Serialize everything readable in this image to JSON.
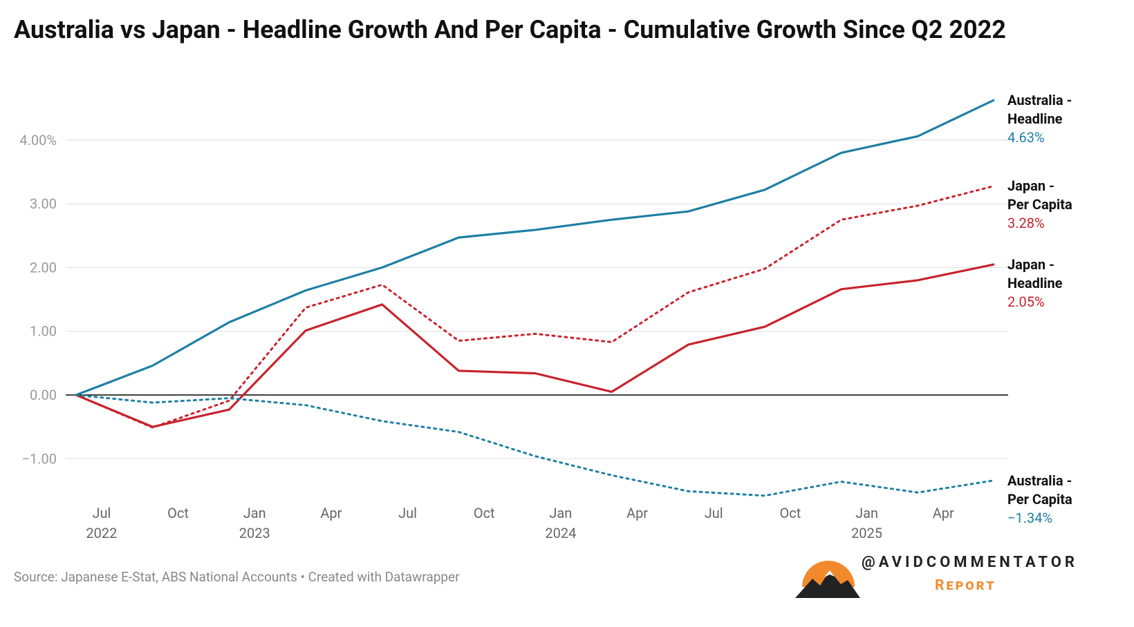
{
  "chart_data": {
    "type": "line",
    "title": "Australia vs Japan - Headline Growth And Per Capita - Cumulative Growth Since Q2 2022",
    "x": [
      "2022-06",
      "2022-09",
      "2022-12",
      "2023-03",
      "2023-06",
      "2023-09",
      "2023-12",
      "2024-03",
      "2024-06",
      "2024-09",
      "2024-12",
      "2025-03",
      "2025-06"
    ],
    "xlim": [
      "2022-06",
      "2025-06"
    ],
    "xticks": [
      {
        "value": "2022-07",
        "label": "Jul"
      },
      {
        "value": "2022-10",
        "label": "Oct"
      },
      {
        "value": "2023-01",
        "label": "Jan"
      },
      {
        "value": "2023-04",
        "label": "Apr"
      },
      {
        "value": "2023-07",
        "label": "Jul"
      },
      {
        "value": "2023-10",
        "label": "Oct"
      },
      {
        "value": "2024-01",
        "label": "Jan"
      },
      {
        "value": "2024-04",
        "label": "Apr"
      },
      {
        "value": "2024-07",
        "label": "Jul"
      },
      {
        "value": "2024-10",
        "label": "Oct"
      },
      {
        "value": "2025-01",
        "label": "Jan"
      },
      {
        "value": "2025-04",
        "label": "Apr"
      }
    ],
    "xyears": [
      {
        "value": "2022-07",
        "label": "2022"
      },
      {
        "value": "2023-01",
        "label": "2023"
      },
      {
        "value": "2024-01",
        "label": "2024"
      },
      {
        "value": "2025-01",
        "label": "2025"
      }
    ],
    "ylim": [
      -1.7,
      4.8
    ],
    "yticks": [
      {
        "value": 4,
        "label": "4.00%"
      },
      {
        "value": 3,
        "label": "3.00"
      },
      {
        "value": 2,
        "label": "2.00"
      },
      {
        "value": 1,
        "label": "1.00"
      },
      {
        "value": 0,
        "label": "0.00"
      },
      {
        "value": -1,
        "label": "−1.00"
      }
    ],
    "grid": true,
    "series": [
      {
        "name": "Australia - Headline",
        "color": "#1f7fa3",
        "style": "solid",
        "values": [
          0,
          0.46,
          1.14,
          1.64,
          2.0,
          2.47,
          2.59,
          2.75,
          2.88,
          3.22,
          3.8,
          4.06,
          4.63
        ],
        "value_labels": [
          null,
          null,
          null,
          null,
          null,
          null,
          null,
          null,
          null,
          null,
          null,
          null,
          "4.63%"
        ]
      },
      {
        "name": "Japan - Per Capita",
        "color": "#c8232c",
        "style": "dotted",
        "values": [
          0,
          -0.51,
          -0.09,
          1.37,
          1.73,
          0.85,
          0.96,
          0.83,
          1.61,
          1.98,
          2.75,
          2.97,
          3.28
        ],
        "value_labels": [
          null,
          null,
          null,
          null,
          null,
          null,
          null,
          null,
          null,
          null,
          null,
          null,
          "3.28%"
        ]
      },
      {
        "name": "Japan - Headline",
        "color": "#c8232c",
        "style": "solid",
        "values": [
          0,
          -0.5,
          -0.23,
          1.01,
          1.42,
          0.38,
          0.34,
          0.05,
          0.79,
          1.07,
          1.66,
          1.8,
          2.05
        ],
        "value_labels": [
          null,
          null,
          null,
          null,
          null,
          null,
          null,
          null,
          null,
          null,
          null,
          null,
          "2.05%"
        ]
      },
      {
        "name": "Australia - Per Capita",
        "color": "#1f7fa3",
        "style": "dotted",
        "values": [
          0,
          -0.12,
          -0.05,
          -0.16,
          -0.41,
          -0.58,
          -0.96,
          -1.26,
          -1.51,
          -1.58,
          -1.36,
          -1.53,
          -1.34
        ],
        "value_labels": [
          null,
          null,
          null,
          null,
          null,
          null,
          null,
          null,
          null,
          null,
          null,
          null,
          "−1.34%"
        ]
      }
    ],
    "source": "Source: Japanese E-Stat, ABS National Accounts • Created with Datawrapper",
    "brand": "@AVIDCOMMENTATOR",
    "brand_sub": "Report"
  }
}
